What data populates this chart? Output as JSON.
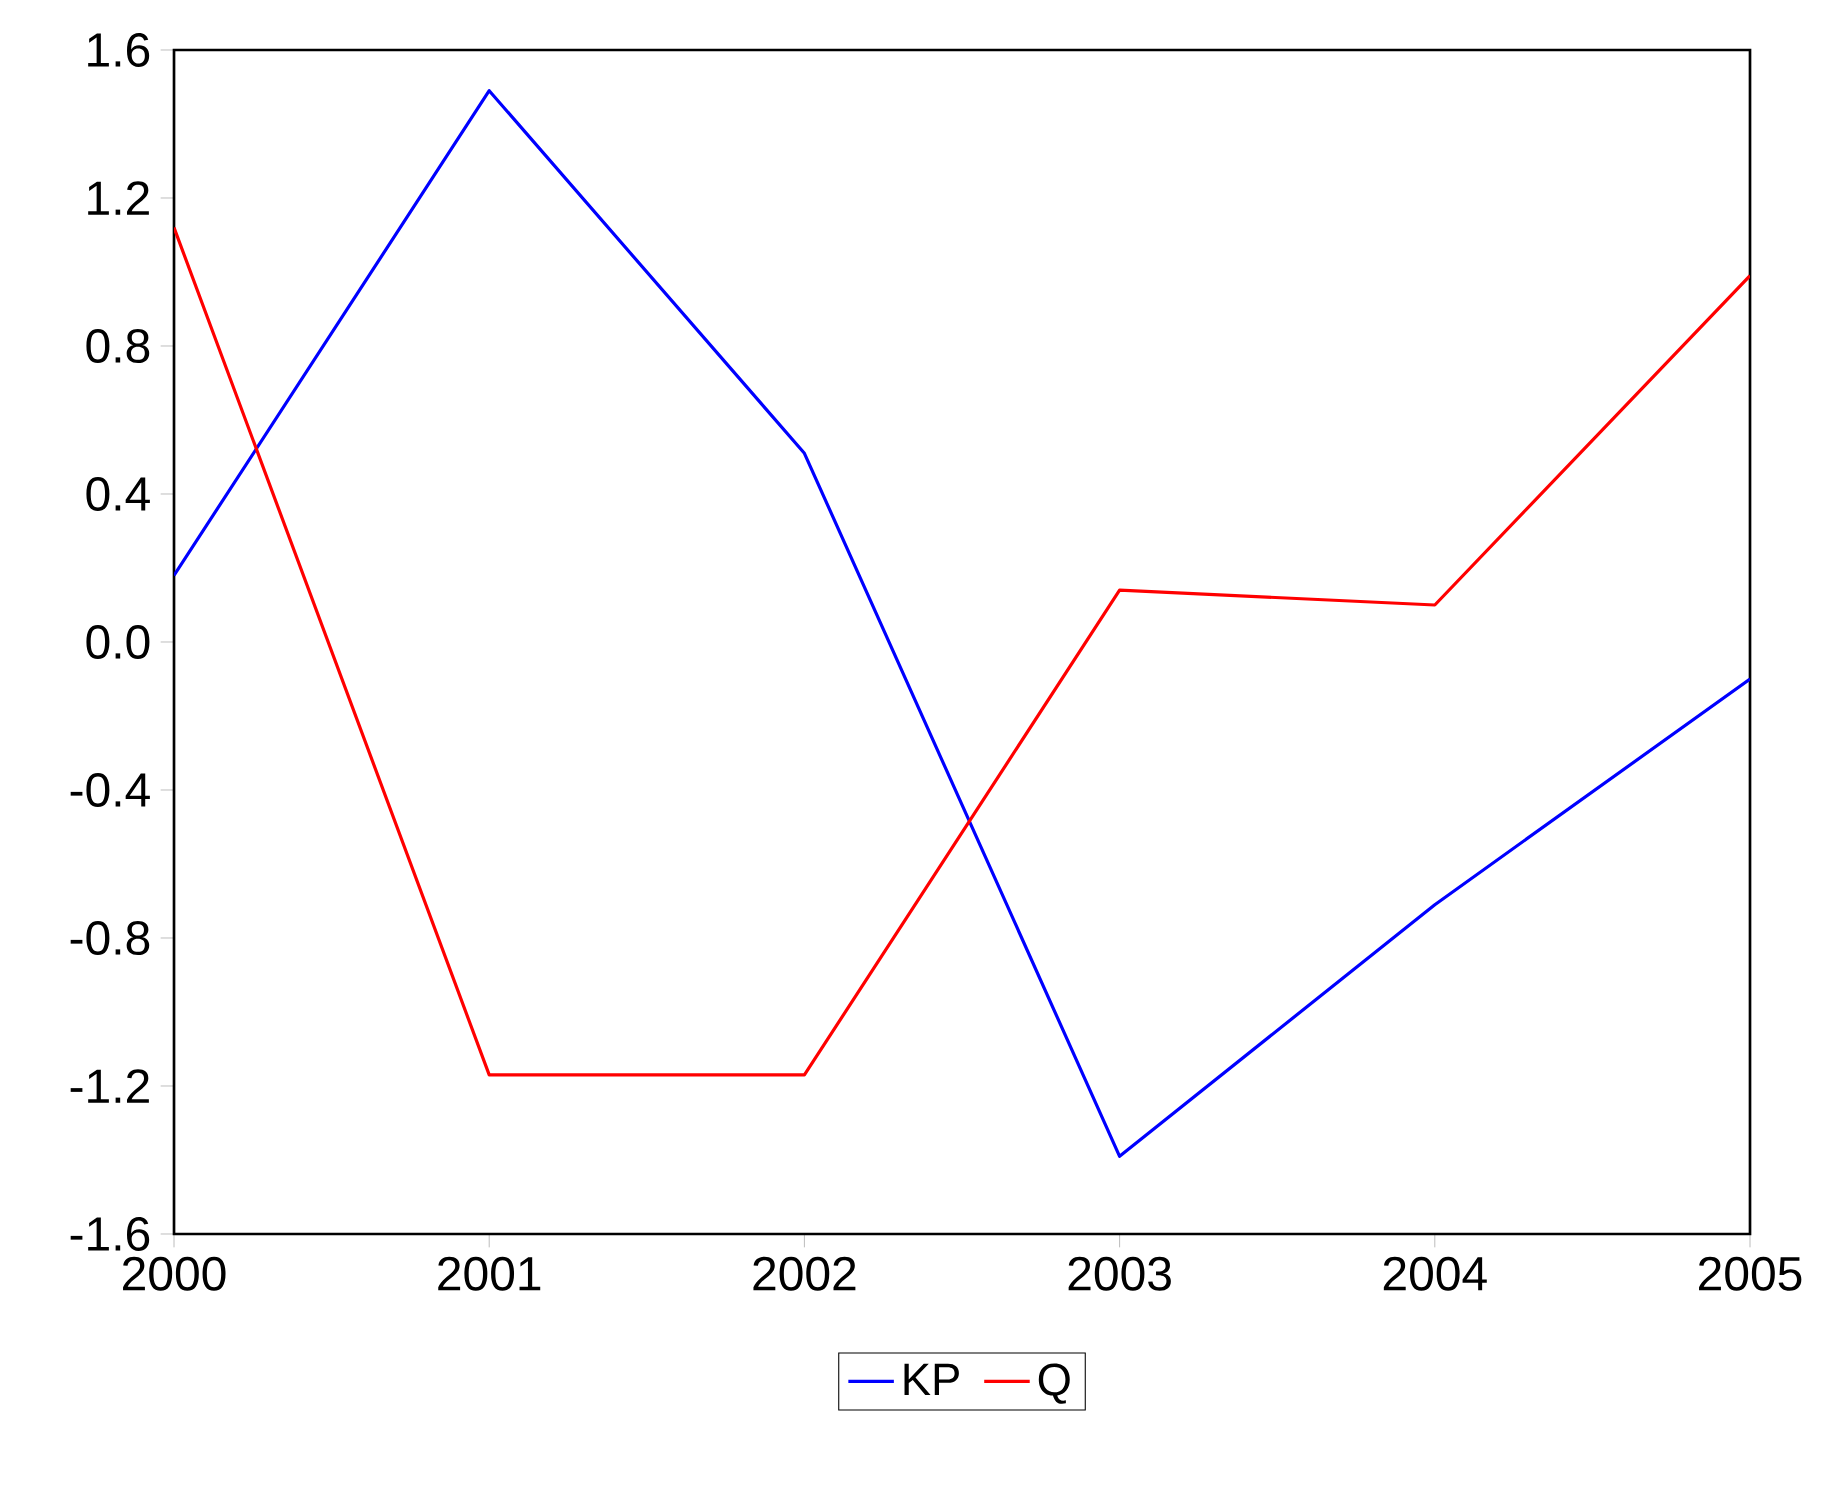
{
  "chart_data": {
    "type": "line",
    "x": [
      2000,
      2001,
      2002,
      2003,
      2004,
      2005
    ],
    "series": [
      {
        "name": "KP",
        "color": "#0000ff",
        "values": [
          0.18,
          1.49,
          0.51,
          -1.39,
          -0.71,
          -0.1
        ]
      },
      {
        "name": "Q",
        "color": "#ff0000",
        "values": [
          1.12,
          -1.17,
          -1.17,
          0.14,
          0.1,
          0.99
        ]
      }
    ],
    "xlim": [
      2000,
      2005
    ],
    "xticks": [
      2000,
      2001,
      2002,
      2003,
      2004,
      2005
    ],
    "ylim": [
      -1.6,
      1.6
    ],
    "yticks": [
      -1.6,
      -1.2,
      -0.8,
      -0.4,
      {
        "value": 0,
        "label": "0.0"
      },
      0.4,
      0.8,
      1.2,
      1.6
    ],
    "grid": false,
    "legend": "bottom",
    "marker": "none",
    "line_style": "solid"
  }
}
